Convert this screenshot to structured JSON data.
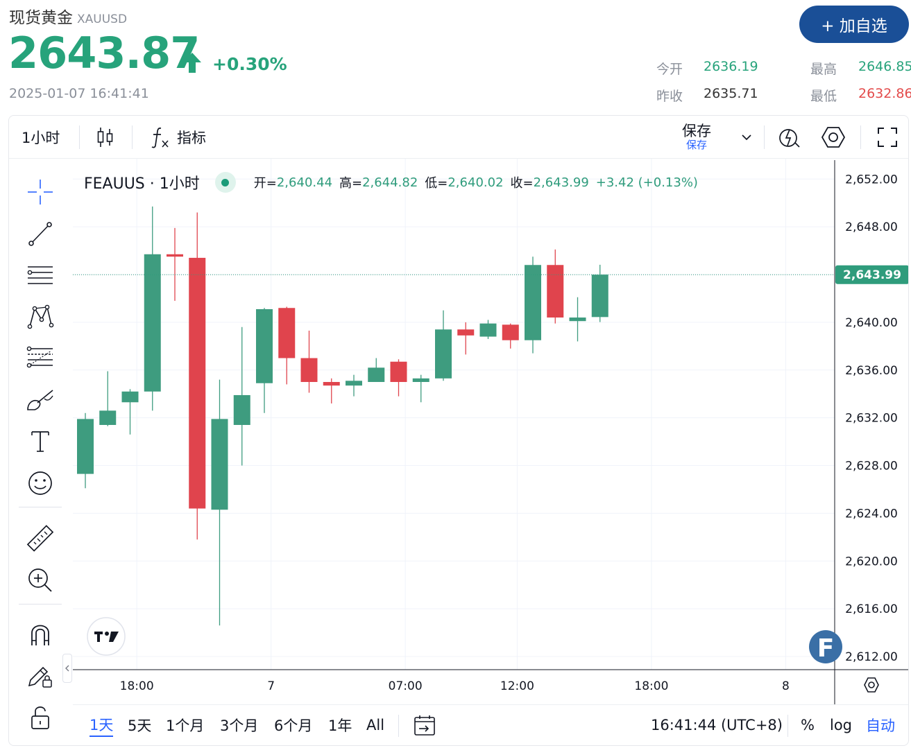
{
  "quote": {
    "name": "现货黄金",
    "symbol": "XAUUSD",
    "price": "2643.87",
    "change": "+0.30%",
    "time": "2025-01-07 16:41:41",
    "add_button": "+ 加自选",
    "open_label": "今开",
    "open_value": "2636.19",
    "high_label": "最高",
    "high_value": "2646.85",
    "prev_close_label": "昨收",
    "prev_close_value": "2635.71",
    "low_label": "最低",
    "low_value": "2632.86"
  },
  "toolbar": {
    "interval": "1小时",
    "indicators_label": "指标",
    "save_label": "保存",
    "save_sub": "保存"
  },
  "legend": {
    "symbol": "FEAUUS · 1小时",
    "o_label": "开=",
    "o_value": "2,640.44",
    "h_label": "高=",
    "h_value": "2,644.82",
    "l_label": "低=",
    "l_value": "2,640.02",
    "c_label": "收=",
    "c_value": "2,643.99",
    "change": "+3.42 (+0.13%)"
  },
  "bottom": {
    "ranges": [
      "1天",
      "5天",
      "1个月",
      "3个月",
      "6个月",
      "1年",
      "All"
    ],
    "active_range": "1天",
    "clock": "16:41:44 (UTC+8)",
    "percent": "%",
    "log": "log",
    "auto": "自动"
  },
  "chart_data": {
    "type": "candlestick",
    "symbol": "FEAUUS",
    "interval": "1小时",
    "y_ticks": [
      "2,652.00",
      "2,648.00",
      "2,644.00",
      "2,640.00",
      "2,636.00",
      "2,632.00",
      "2,628.00",
      "2,624.00",
      "2,620.00",
      "2,616.00",
      "2,612.00"
    ],
    "y_tick_values": [
      2652,
      2648,
      2644,
      2640,
      2636,
      2632,
      2628,
      2624,
      2620,
      2616,
      2612
    ],
    "ylim": [
      2610.9,
      2653.7
    ],
    "x_ticks": [
      {
        "label": "18:00",
        "bar": 2.3
      },
      {
        "label": "7",
        "bar": 8.3
      },
      {
        "label": "07:00",
        "bar": 14.3
      },
      {
        "label": "12:00",
        "bar": 19.3
      },
      {
        "label": "18:00",
        "bar": 25.3
      },
      {
        "label": "8",
        "bar": 31.3
      }
    ],
    "last_price": 2643.99,
    "last_price_label": "2,643.99",
    "colors": {
      "up": "#3e9c7f",
      "down": "#e0444d",
      "last": "#2f9c7c"
    },
    "candles": [
      {
        "o": 2627.3,
        "h": 2632.4,
        "l": 2626.1,
        "c": 2631.9
      },
      {
        "o": 2631.4,
        "h": 2635.9,
        "l": 2631.3,
        "c": 2632.6
      },
      {
        "o": 2633.3,
        "h": 2634.4,
        "l": 2630.6,
        "c": 2634.2
      },
      {
        "o": 2634.2,
        "h": 2649.7,
        "l": 2632.6,
        "c": 2645.7
      },
      {
        "o": 2645.7,
        "h": 2647.9,
        "l": 2641.8,
        "c": 2645.5
      },
      {
        "o": 2645.4,
        "h": 2649.2,
        "l": 2621.8,
        "c": 2624.4
      },
      {
        "o": 2624.3,
        "h": 2635.2,
        "l": 2614.6,
        "c": 2631.9
      },
      {
        "o": 2631.4,
        "h": 2639.6,
        "l": 2628.0,
        "c": 2633.9
      },
      {
        "o": 2634.9,
        "h": 2641.2,
        "l": 2632.4,
        "c": 2641.1
      },
      {
        "o": 2641.2,
        "h": 2641.3,
        "l": 2634.8,
        "c": 2637.0
      },
      {
        "o": 2637.0,
        "h": 2639.3,
        "l": 2634.1,
        "c": 2635.0
      },
      {
        "o": 2635.0,
        "h": 2635.3,
        "l": 2633.2,
        "c": 2634.7
      },
      {
        "o": 2634.7,
        "h": 2635.6,
        "l": 2633.8,
        "c": 2635.1
      },
      {
        "o": 2635.0,
        "h": 2637.0,
        "l": 2635.0,
        "c": 2636.2
      },
      {
        "o": 2636.7,
        "h": 2636.9,
        "l": 2633.8,
        "c": 2635.0
      },
      {
        "o": 2635.0,
        "h": 2635.6,
        "l": 2633.3,
        "c": 2635.3
      },
      {
        "o": 2635.3,
        "h": 2641.0,
        "l": 2635.1,
        "c": 2639.4
      },
      {
        "o": 2639.4,
        "h": 2640.0,
        "l": 2637.3,
        "c": 2638.9
      },
      {
        "o": 2638.8,
        "h": 2640.2,
        "l": 2638.6,
        "c": 2639.9
      },
      {
        "o": 2639.8,
        "h": 2639.9,
        "l": 2637.8,
        "c": 2638.5
      },
      {
        "o": 2638.5,
        "h": 2645.5,
        "l": 2637.4,
        "c": 2644.8
      },
      {
        "o": 2644.8,
        "h": 2646.1,
        "l": 2639.9,
        "c": 2640.4
      },
      {
        "o": 2640.1,
        "h": 2642.1,
        "l": 2638.4,
        "c": 2640.4
      },
      {
        "o": 2640.44,
        "h": 2644.82,
        "l": 2640.02,
        "c": 2643.99
      }
    ]
  }
}
